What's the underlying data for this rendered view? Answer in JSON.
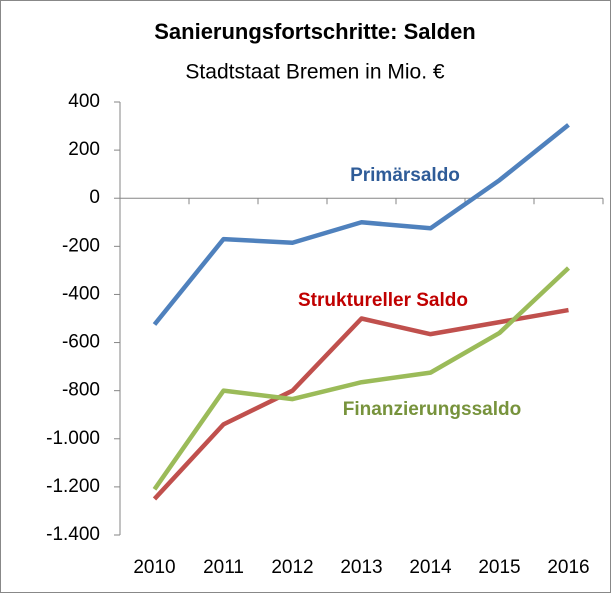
{
  "chart_data": {
    "type": "line",
    "title": "Sanierungsfortschritte: Salden",
    "subtitle": "Stadtstaat Bremen in Mio. €",
    "categories": [
      "2010",
      "2011",
      "2012",
      "2013",
      "2014",
      "2015",
      "2016"
    ],
    "series": [
      {
        "name": "Primärsaldo",
        "color": "#4f81bd",
        "label_color": "#2f5c98",
        "values": [
          -525,
          -170,
          -185,
          -100,
          -125,
          75,
          305
        ]
      },
      {
        "name": "Struktureller Saldo",
        "color": "#c0504d",
        "label_color": "#c00000",
        "values": [
          -1250,
          -940,
          -800,
          -500,
          -565,
          -515,
          -465
        ]
      },
      {
        "name": "Finanzierungssaldo",
        "color": "#9bbb59",
        "label_color": "#77933c",
        "values": [
          -1210,
          -800,
          -835,
          -765,
          -725,
          -560,
          -290
        ]
      }
    ],
    "ylim": [
      -1400,
      400
    ],
    "yticks": [
      {
        "value": -1400,
        "label": "-1.400"
      },
      {
        "value": -1200,
        "label": "-1.200"
      },
      {
        "value": -1000,
        "label": "-1.000"
      },
      -800,
      -600,
      -400,
      -200,
      0,
      200,
      400
    ]
  }
}
